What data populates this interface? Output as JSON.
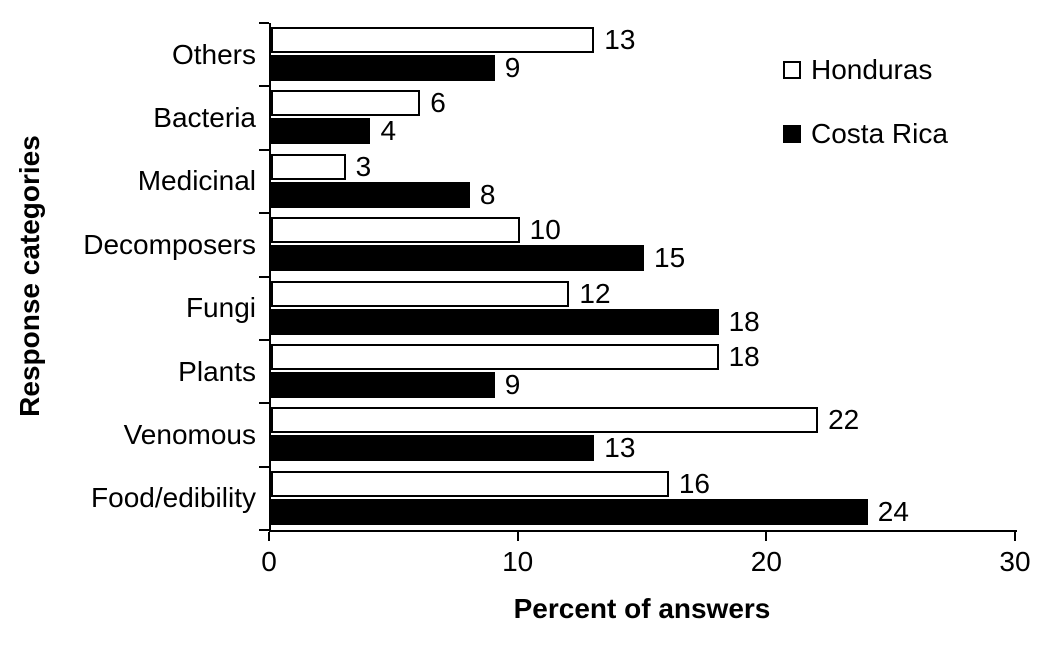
{
  "chart_data": {
    "type": "bar",
    "orientation": "horizontal",
    "title": "",
    "xlabel": "Percent of answers",
    "ylabel": "Response categories",
    "categories": [
      "Others",
      "Bacteria",
      "Medicinal",
      "Decomposers",
      "Fungi",
      "Plants",
      "Venomous",
      "Food/edibility"
    ],
    "series": [
      {
        "name": "Honduras",
        "color": "#ffffff",
        "values": [
          13,
          6,
          3,
          10,
          12,
          18,
          22,
          16
        ]
      },
      {
        "name": "Costa Rica",
        "color": "#000000",
        "values": [
          9,
          4,
          8,
          15,
          18,
          9,
          13,
          24
        ]
      }
    ],
    "xlim": [
      0,
      30
    ],
    "xticks": [
      0,
      10,
      20,
      30
    ],
    "grid": false,
    "legend_position": "top-right",
    "bar_value_labels_shown": true,
    "axis_color": "#000000",
    "background_color": "#ffffff"
  }
}
